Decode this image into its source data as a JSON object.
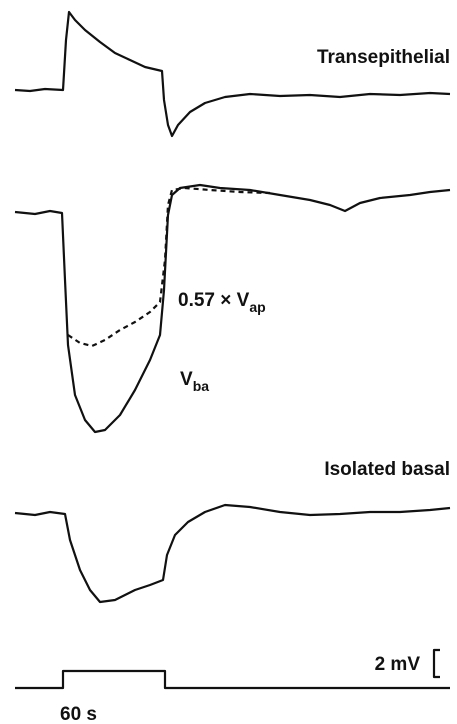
{
  "labels": {
    "transepithelial": "Transepithelial",
    "scaled_apical": {
      "text": "0.57 × V",
      "subscript": "ap"
    },
    "basal_voltage": {
      "text": "V",
      "subscript": "ba"
    },
    "isolated_basal": "Isolated basal",
    "voltage_scale": "2 mV",
    "time_scale": "60 s"
  }
}
